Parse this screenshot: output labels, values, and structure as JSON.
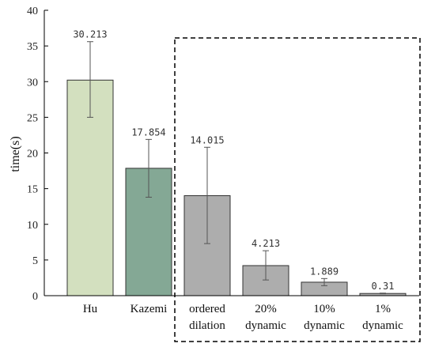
{
  "chart_data": {
    "type": "bar",
    "title": "",
    "xlabel": "",
    "ylabel": "time(s)",
    "ylim": [
      0,
      40
    ],
    "yticks": [
      0,
      5,
      10,
      15,
      20,
      25,
      30,
      35,
      40
    ],
    "grid": false,
    "legend": "none",
    "categories": [
      [
        "Hu"
      ],
      [
        "Kazemi"
      ],
      [
        "ordered",
        "dilation"
      ],
      [
        "20%",
        "dynamic"
      ],
      [
        "10%",
        "dynamic"
      ],
      [
        "1%",
        "dynamic"
      ]
    ],
    "values": [
      30.213,
      17.854,
      14.015,
      4.213,
      1.889,
      0.31
    ],
    "value_labels": [
      "30.213",
      "17.854",
      "14.015",
      "4.213",
      "1.889",
      "0.31"
    ],
    "error_low": [
      25.0,
      13.8,
      7.3,
      2.2,
      1.4,
      0.26
    ],
    "error_high": [
      35.6,
      21.9,
      20.8,
      6.3,
      2.4,
      0.36
    ],
    "colors": [
      "#d3e0bf",
      "#84a895",
      "#adadad",
      "#adadad",
      "#adadad",
      "#adadad"
    ],
    "highlight_box": {
      "from_category": 2,
      "to_category": 5,
      "style": "dashed"
    }
  }
}
